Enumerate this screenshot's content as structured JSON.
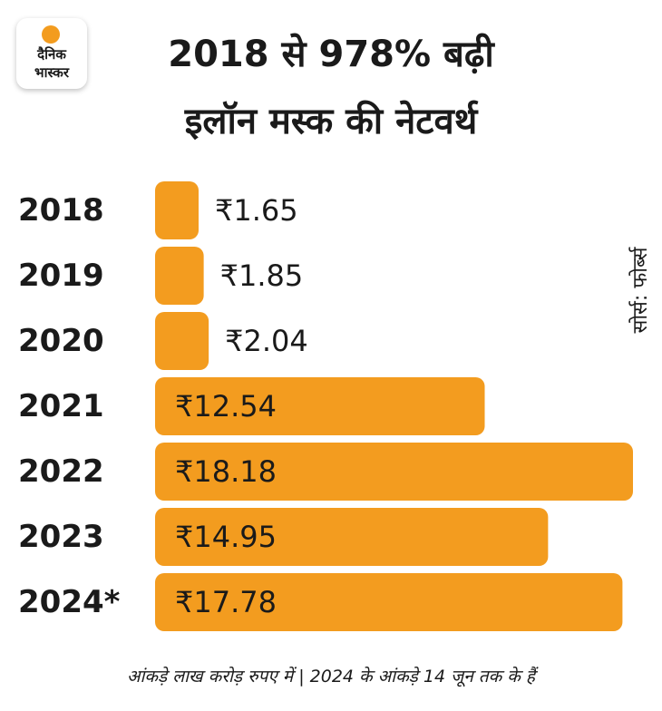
{
  "brand": {
    "logo_line1": "दैनिक",
    "logo_line2": "भास्कर",
    "accent_color": "#f39c1f"
  },
  "title": {
    "line1": "2018 से 978% बढ़ी",
    "line2": "इलॉन मस्क की नेटवर्थ"
  },
  "source_label": "सोर्स: फोर्ब्स",
  "footnote": "आंकड़े लाख करोड़ रुपए में | 2024 के आंकड़े 14 जून तक के हैं",
  "chart_data": {
    "type": "bar",
    "orientation": "horizontal",
    "categories": [
      "2018",
      "2019",
      "2020",
      "2021",
      "2022",
      "2023",
      "2024*"
    ],
    "values": [
      1.65,
      1.85,
      2.04,
      12.54,
      18.18,
      14.95,
      17.78
    ],
    "value_labels": [
      "₹1.65",
      "₹1.85",
      "₹2.04",
      "₹12.54",
      "₹18.18",
      "₹14.95",
      "₹17.78"
    ],
    "unit": "लाख करोड़ रुपए",
    "xlim": [
      0,
      18.18
    ],
    "bar_color": "#f39c1f"
  }
}
